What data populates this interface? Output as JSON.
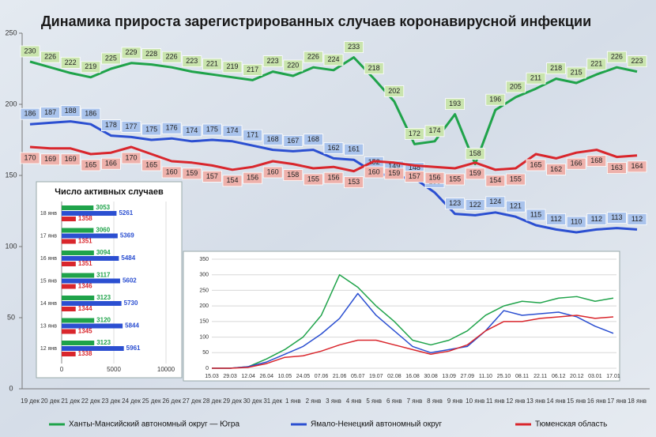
{
  "chart_data": [
    {
      "type": "line",
      "title": "Динамика прироста зарегистрированных случаев коронавирусной инфекции",
      "categories": [
        "19 дек",
        "20 дек",
        "21 дек",
        "22 дек",
        "23 дек",
        "24 дек",
        "25 дек",
        "26 дек",
        "27 дек",
        "28 дек",
        "29 дек",
        "30 дек",
        "31 дек",
        "1 янв",
        "2 янв",
        "3 янв",
        "4 янв",
        "5 янв",
        "6 янв",
        "7 янв",
        "8 янв",
        "9 янв",
        "10 янв",
        "11 янв",
        "12 янв",
        "13 янв",
        "14 янв",
        "15 янв",
        "16 янв",
        "17 янв",
        "18 янв"
      ],
      "series": [
        {
          "name": "Ханты-Мансийский автономный округ — Югра",
          "color": "#1fa34a",
          "values": [
            230,
            226,
            222,
            219,
            225,
            229,
            228,
            226,
            223,
            221,
            219,
            217,
            223,
            220,
            226,
            224,
            233,
            218,
            202,
            172,
            174,
            193,
            158,
            196,
            205,
            211,
            218,
            215,
            221,
            226,
            223
          ]
        },
        {
          "name": "Ямало-Ненецкий автономный округ",
          "color": "#2b4fd1",
          "values": [
            186,
            187,
            188,
            186,
            178,
            177,
            175,
            176,
            174,
            175,
            174,
            171,
            168,
            167,
            168,
            162,
            161,
            152,
            149,
            148,
            138,
            123,
            122,
            124,
            121,
            115,
            112,
            110,
            112,
            113,
            112
          ]
        },
        {
          "name": "Тюменская область",
          "color": "#d9262c",
          "values": [
            170,
            169,
            169,
            165,
            166,
            170,
            165,
            160,
            159,
            157,
            154,
            156,
            160,
            158,
            155,
            156,
            153,
            160,
            159,
            157,
            156,
            155,
            159,
            154,
            155,
            165,
            162,
            166,
            168,
            163,
            164
          ]
        }
      ],
      "ylim": [
        0,
        250
      ],
      "yticks": [
        0,
        50,
        100,
        150,
        200,
        250
      ],
      "grid": false
    },
    {
      "type": "barh",
      "title": "Число активных случаев",
      "categories": [
        "18 янв",
        "17 янв",
        "16 янв",
        "15 янв",
        "14 янв",
        "13 янв",
        "12 янв"
      ],
      "series": [
        {
          "color": "#1fa34a",
          "values": [
            3053,
            3060,
            3094,
            3117,
            3123,
            3120,
            3123
          ]
        },
        {
          "color": "#2b4fd1",
          "values": [
            5261,
            5369,
            5484,
            5602,
            5730,
            5844,
            5961
          ]
        },
        {
          "color": "#d9262c",
          "values": [
            1358,
            1351,
            1351,
            1346,
            1344,
            1345,
            1338
          ]
        }
      ],
      "xlim": [
        0,
        10000
      ],
      "xticks": [
        0,
        5000,
        10000
      ],
      "grid": true
    },
    {
      "type": "line",
      "categories": [
        "15.03",
        "29.03",
        "12.04",
        "26.04",
        "10.05",
        "24.05",
        "07.06",
        "21.06",
        "05.07",
        "19.07",
        "02.08",
        "16.08",
        "30.08",
        "13.09",
        "27.09",
        "11.10",
        "25.10",
        "08.11",
        "22.11",
        "06.12",
        "20.12",
        "03.01",
        "17.01"
      ],
      "series": [
        {
          "color": "#1fa34a",
          "values": [
            0,
            0,
            5,
            30,
            60,
            100,
            170,
            300,
            260,
            200,
            150,
            90,
            75,
            90,
            120,
            170,
            200,
            215,
            210,
            225,
            230,
            215,
            225
          ]
        },
        {
          "color": "#2b4fd1",
          "values": [
            0,
            0,
            5,
            20,
            45,
            70,
            110,
            160,
            240,
            170,
            120,
            70,
            50,
            60,
            70,
            120,
            185,
            170,
            175,
            180,
            165,
            135,
            112
          ]
        },
        {
          "color": "#d9262c",
          "values": [
            0,
            0,
            3,
            15,
            35,
            40,
            55,
            75,
            90,
            90,
            75,
            60,
            45,
            55,
            75,
            120,
            150,
            150,
            160,
            165,
            170,
            160,
            165
          ]
        }
      ],
      "ylim": [
        0,
        350
      ],
      "yticks": [
        0,
        50,
        100,
        150,
        200,
        250,
        300,
        350
      ],
      "grid": true
    }
  ]
}
